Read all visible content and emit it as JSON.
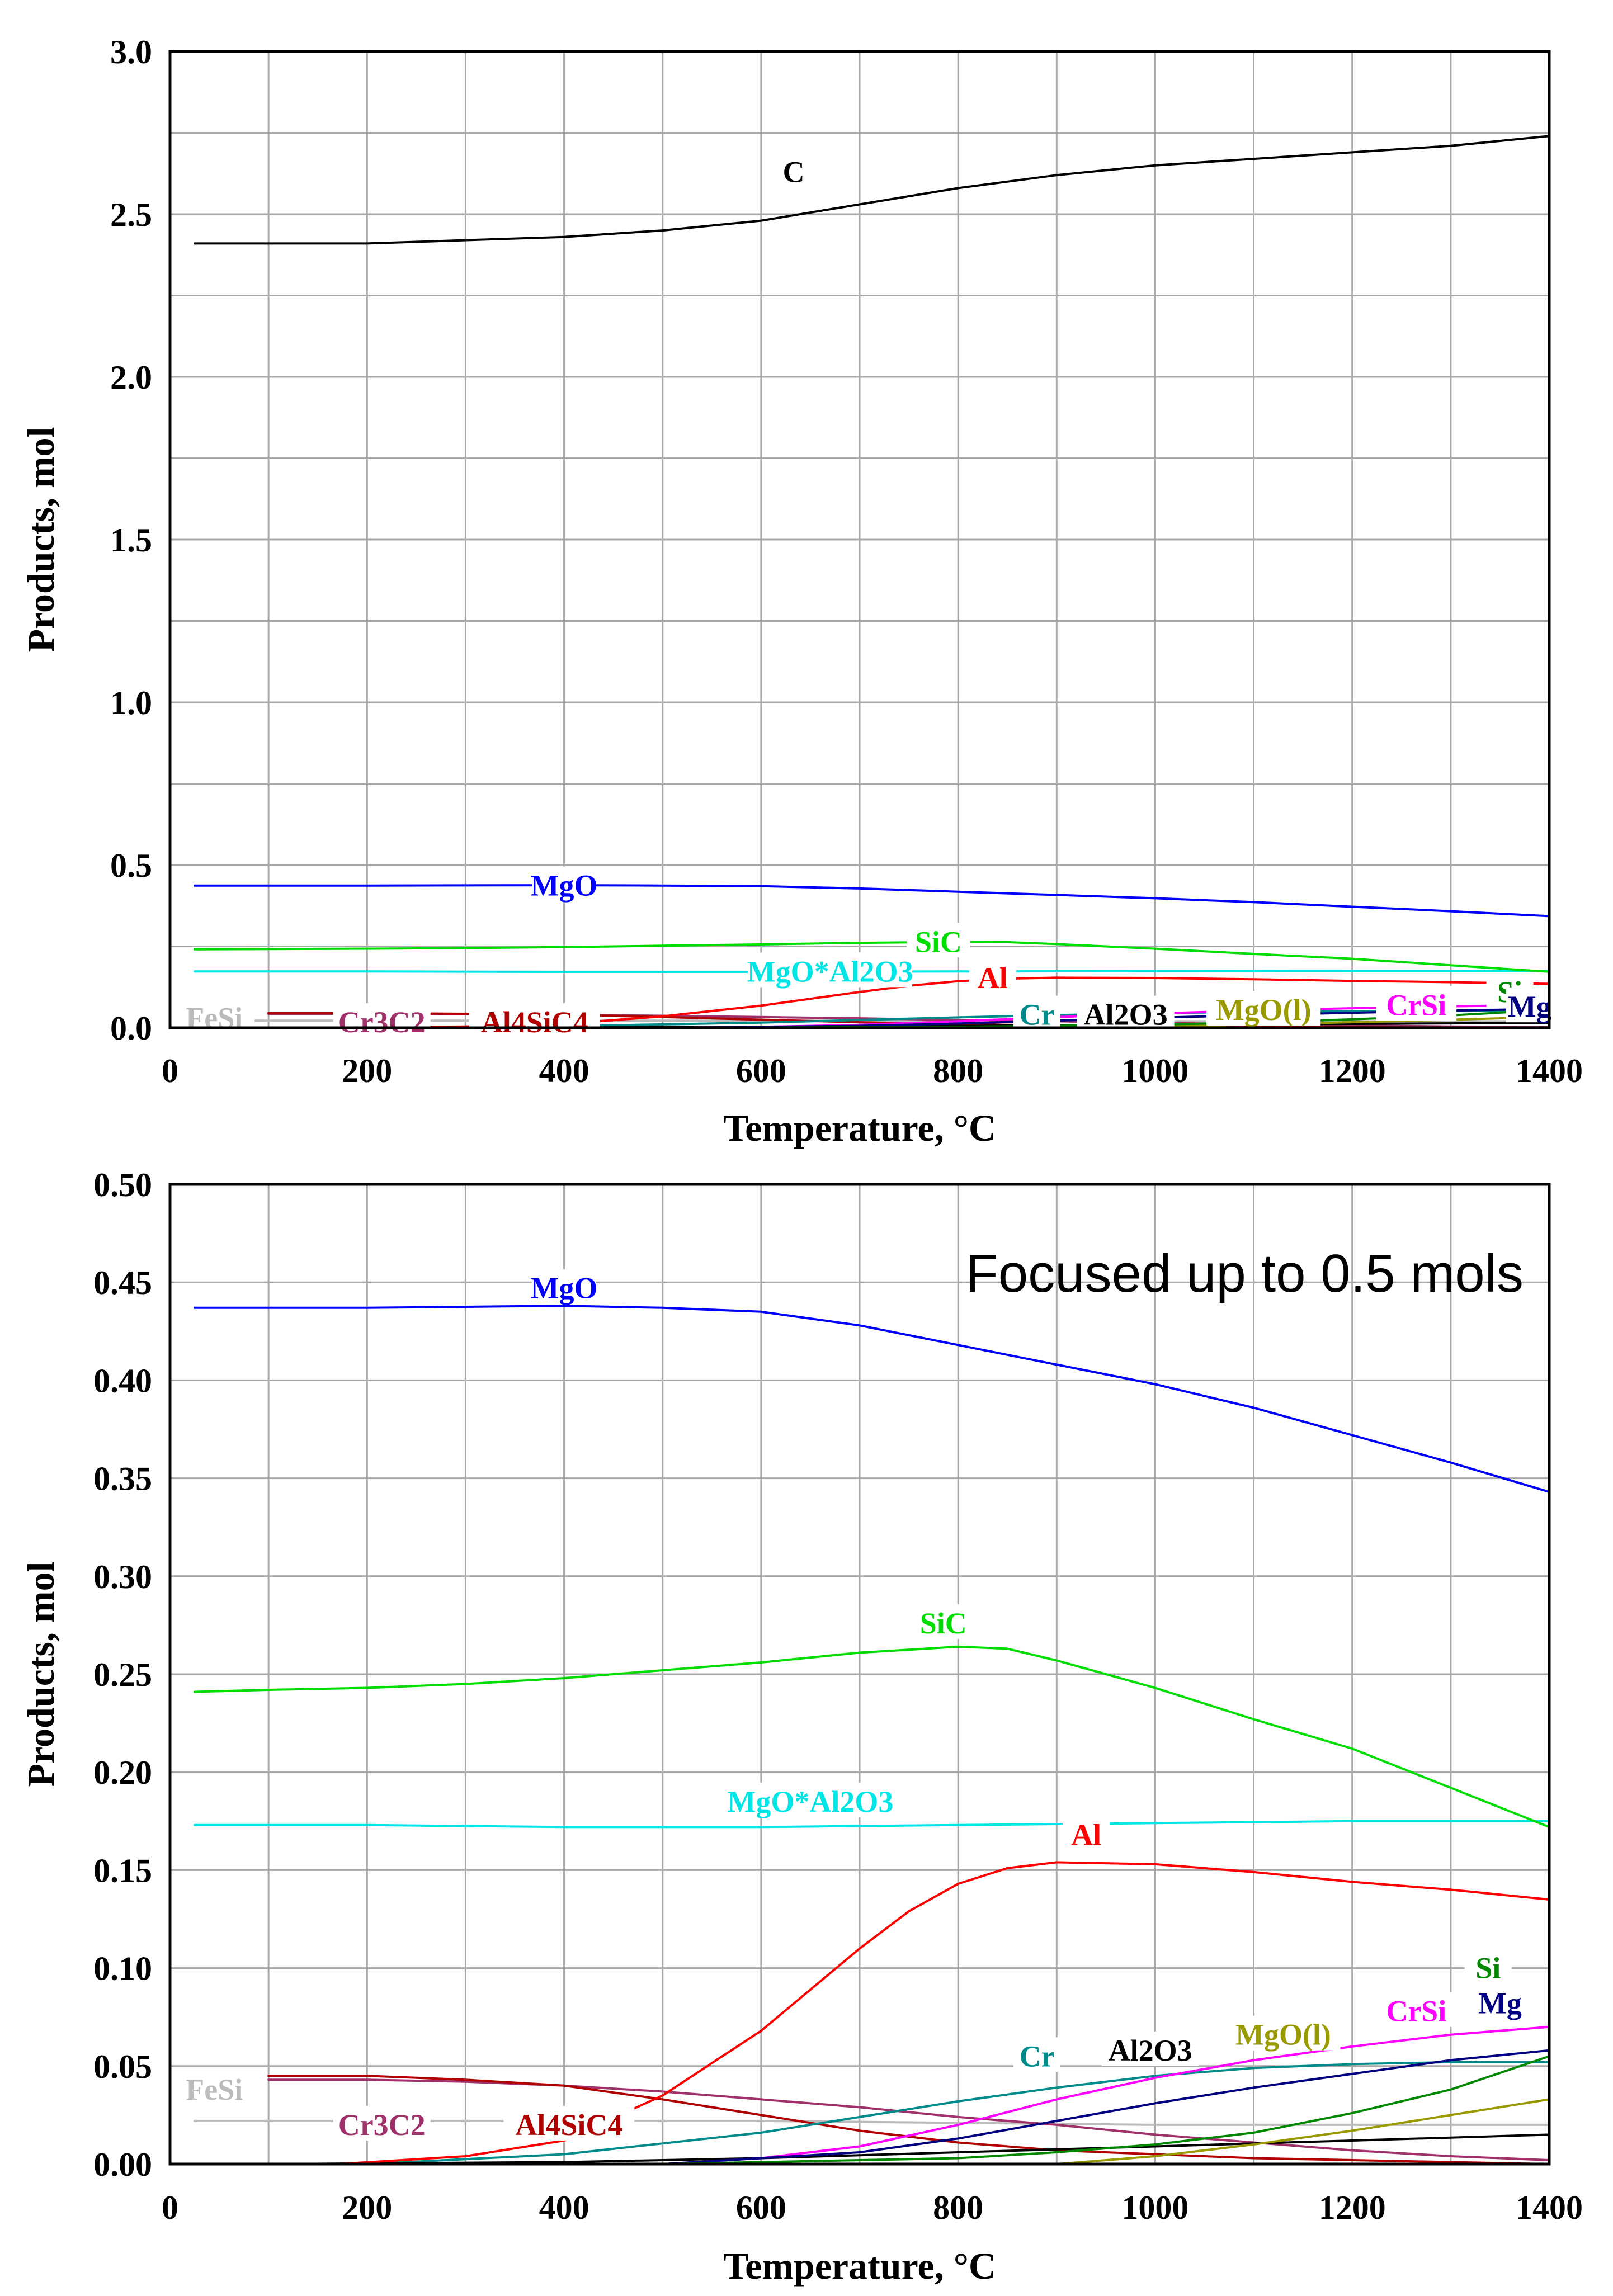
{
  "chart_data": [
    {
      "type": "line",
      "title": "",
      "xlabel": "Temperature, °C",
      "ylabel": "Products, mol",
      "xlim": [
        0,
        1400
      ],
      "ylim": [
        0,
        3.0
      ],
      "grid": true,
      "x_tick_step": 100,
      "x_tick_labels": [
        "0",
        "200",
        "400",
        "600",
        "800",
        "1000",
        "1200",
        "1400"
      ],
      "x_tick_values": [
        0,
        200,
        400,
        600,
        800,
        1000,
        1200,
        1400
      ],
      "y_tick_labels": [
        "0.0",
        "0.5",
        "1.0",
        "1.5",
        "2.0",
        "2.5",
        "3.0"
      ],
      "y_tick_values": [
        0,
        0.5,
        1.0,
        1.5,
        2.0,
        2.5,
        3.0
      ],
      "y_grid_step": 0.25,
      "series": [
        {
          "name": "C",
          "color": "#000000",
          "x": [
            25,
            200,
            400,
            500,
            600,
            700,
            800,
            900,
            1000,
            1100,
            1200,
            1300,
            1400
          ],
          "values": [
            2.41,
            2.41,
            2.43,
            2.45,
            2.48,
            2.53,
            2.58,
            2.62,
            2.65,
            2.67,
            2.69,
            2.71,
            2.74
          ],
          "label": "C",
          "label_at": [
            633,
            2.63
          ]
        },
        {
          "name": "MgO",
          "color": "#0000ff",
          "x": [
            25,
            200,
            400,
            500,
            600,
            700,
            800,
            900,
            1000,
            1100,
            1200,
            1300,
            1400
          ],
          "values": [
            0.437,
            0.437,
            0.438,
            0.437,
            0.435,
            0.428,
            0.418,
            0.408,
            0.398,
            0.386,
            0.372,
            0.358,
            0.343
          ],
          "label": "MgO",
          "label_at": [
            400,
            0.437
          ]
        },
        {
          "name": "SiC",
          "color": "#00dd00",
          "x": [
            25,
            100,
            200,
            300,
            400,
            500,
            600,
            700,
            800,
            850,
            900,
            1000,
            1100,
            1200,
            1300,
            1400
          ],
          "values": [
            0.241,
            0.242,
            0.243,
            0.245,
            0.248,
            0.252,
            0.256,
            0.261,
            0.264,
            0.263,
            0.257,
            0.243,
            0.227,
            0.212,
            0.192,
            0.172
          ],
          "label": "SiC",
          "label_at": [
            780,
            0.264
          ]
        },
        {
          "name": "MgO*Al2O3",
          "color": "#00e5e5",
          "x": [
            25,
            200,
            400,
            600,
            800,
            1000,
            1200,
            1400
          ],
          "values": [
            0.173,
            0.173,
            0.172,
            0.172,
            0.173,
            0.174,
            0.175,
            0.175
          ],
          "label": "MgO*Al2O3",
          "label_at": [
            670,
            0.173
          ]
        },
        {
          "name": "Al",
          "color": "#ff0000",
          "x": [
            170,
            300,
            400,
            500,
            600,
            700,
            750,
            800,
            850,
            900,
            1000,
            1100,
            1200,
            1300,
            1400
          ],
          "values": [
            0.0,
            0.004,
            0.012,
            0.035,
            0.068,
            0.11,
            0.129,
            0.143,
            0.151,
            0.154,
            0.153,
            0.149,
            0.144,
            0.14,
            0.135
          ],
          "label": "Al",
          "label_at": [
            835,
            0.153
          ]
        },
        {
          "name": "Si",
          "color": "#008800",
          "x": [
            500,
            800,
            900,
            1000,
            1100,
            1200,
            1300,
            1400
          ],
          "values": [
            0.0,
            0.003,
            0.006,
            0.01,
            0.016,
            0.026,
            0.038,
            0.055
          ],
          "label": "Si",
          "label_at": [
            1360,
            0.11
          ]
        },
        {
          "name": "Mg",
          "color": "#000080",
          "x": [
            500,
            700,
            800,
            900,
            1000,
            1100,
            1200,
            1300,
            1400
          ],
          "values": [
            0.0,
            0.006,
            0.013,
            0.022,
            0.031,
            0.039,
            0.046,
            0.053,
            0.058
          ],
          "label": "Mg",
          "label_at": [
            1380,
            0.065
          ]
        },
        {
          "name": "CrSi",
          "color": "#ff00ff",
          "x": [
            500,
            600,
            700,
            800,
            900,
            1000,
            1100,
            1200,
            1300,
            1400
          ],
          "values": [
            0.0,
            0.003,
            0.009,
            0.02,
            0.033,
            0.044,
            0.053,
            0.06,
            0.066,
            0.07
          ],
          "label": "CrSi",
          "label_at": [
            1265,
            0.07
          ]
        },
        {
          "name": "MgO(l)",
          "color": "#999900",
          "x": [
            900,
            1000,
            1100,
            1200,
            1300,
            1400
          ],
          "values": [
            0.0,
            0.004,
            0.01,
            0.017,
            0.025,
            0.033
          ],
          "label": "MgO(l)",
          "label_at": [
            1110,
            0.055
          ]
        },
        {
          "name": "Al2O3",
          "color": "#000000",
          "x": [
            100,
            400,
            600,
            800,
            1000,
            1200,
            1400
          ],
          "values": [
            0.0,
            0.001,
            0.003,
            0.006,
            0.009,
            0.012,
            0.015
          ],
          "label": "Al2O3",
          "label_at": [
            970,
            0.04
          ]
        },
        {
          "name": "Cr",
          "color": "#008b8b",
          "x": [
            200,
            400,
            600,
            700,
            800,
            900,
            1000,
            1100,
            1200,
            1300,
            1400
          ],
          "values": [
            0.0,
            0.005,
            0.016,
            0.024,
            0.032,
            0.039,
            0.045,
            0.049,
            0.051,
            0.052,
            0.052
          ],
          "label": "Cr",
          "label_at": [
            880,
            0.04
          ]
        },
        {
          "name": "Al4SiC4",
          "color": "#b00000",
          "x": [
            100,
            200,
            300,
            400,
            500,
            600,
            700,
            800,
            900,
            1000,
            1100,
            1200,
            1300,
            1400
          ],
          "values": [
            0.045,
            0.045,
            0.043,
            0.04,
            0.033,
            0.025,
            0.017,
            0.011,
            0.007,
            0.005,
            0.003,
            0.002,
            0.001,
            0.0
          ],
          "label": "Al4SiC4",
          "label_at": [
            370,
            0.017
          ]
        },
        {
          "name": "Cr3C2",
          "color": "#a0306a",
          "x": [
            100,
            200,
            300,
            400,
            500,
            600,
            700,
            800,
            900,
            1000,
            1100,
            1200,
            1300,
            1400
          ],
          "values": [
            0.043,
            0.043,
            0.042,
            0.04,
            0.037,
            0.033,
            0.029,
            0.024,
            0.02,
            0.015,
            0.011,
            0.007,
            0.004,
            0.002
          ],
          "label": "Cr3C2",
          "label_at": [
            215,
            0.017
          ]
        },
        {
          "name": "FeSi",
          "color": "#bbbbbb",
          "x": [
            25,
            100,
            200,
            400,
            600,
            800,
            1000,
            1200,
            1400
          ],
          "values": [
            0.022,
            0.022,
            0.022,
            0.022,
            0.022,
            0.021,
            0.02,
            0.02,
            0.02
          ],
          "label": "FeSi",
          "label_at": [
            45,
            0.03
          ]
        }
      ]
    },
    {
      "type": "line",
      "title": "",
      "annotation": "Focused up to 0.5 mols",
      "xlabel": "Temperature, °C",
      "ylabel": "Products, mol",
      "xlim": [
        0,
        1400
      ],
      "ylim": [
        0,
        0.5
      ],
      "grid": true,
      "x_tick_step": 100,
      "x_tick_labels": [
        "0",
        "200",
        "400",
        "600",
        "800",
        "1000",
        "1200",
        "1400"
      ],
      "x_tick_values": [
        0,
        200,
        400,
        600,
        800,
        1000,
        1200,
        1400
      ],
      "y_tick_labels": [
        "0.00",
        "0.05",
        "0.10",
        "0.15",
        "0.20",
        "0.25",
        "0.30",
        "0.35",
        "0.40",
        "0.45",
        "0.50"
      ],
      "y_tick_values": [
        0,
        0.05,
        0.1,
        0.15,
        0.2,
        0.25,
        0.3,
        0.35,
        0.4,
        0.45,
        0.5
      ],
      "y_grid_step": 0.05,
      "series": [
        {
          "name": "MgO",
          "color": "#0000ff",
          "x": [
            25,
            200,
            400,
            500,
            600,
            700,
            800,
            900,
            1000,
            1100,
            1200,
            1300,
            1400
          ],
          "values": [
            0.437,
            0.437,
            0.438,
            0.437,
            0.435,
            0.428,
            0.418,
            0.408,
            0.398,
            0.386,
            0.372,
            0.358,
            0.343
          ],
          "label": "MgO",
          "label_at": [
            400,
            0.447
          ]
        },
        {
          "name": "SiC",
          "color": "#00dd00",
          "x": [
            25,
            100,
            200,
            300,
            400,
            500,
            600,
            700,
            800,
            850,
            900,
            1000,
            1100,
            1200,
            1300,
            1400
          ],
          "values": [
            0.241,
            0.242,
            0.243,
            0.245,
            0.248,
            0.252,
            0.256,
            0.261,
            0.264,
            0.263,
            0.257,
            0.243,
            0.227,
            0.212,
            0.192,
            0.172
          ],
          "label": "SiC",
          "label_at": [
            785,
            0.276
          ]
        },
        {
          "name": "MgO*Al2O3",
          "color": "#00e5e5",
          "x": [
            25,
            200,
            400,
            600,
            800,
            1000,
            1200,
            1400
          ],
          "values": [
            0.173,
            0.173,
            0.172,
            0.172,
            0.173,
            0.174,
            0.175,
            0.175
          ],
          "label": "MgO*Al2O3",
          "label_at": [
            650,
            0.185
          ]
        },
        {
          "name": "Al",
          "color": "#ff0000",
          "x": [
            170,
            300,
            400,
            500,
            600,
            700,
            750,
            800,
            850,
            900,
            1000,
            1100,
            1200,
            1300,
            1400
          ],
          "values": [
            0.0,
            0.004,
            0.012,
            0.035,
            0.068,
            0.11,
            0.129,
            0.143,
            0.151,
            0.154,
            0.153,
            0.149,
            0.144,
            0.14,
            0.135
          ],
          "label": "Al",
          "label_at": [
            930,
            0.168
          ]
        },
        {
          "name": "Si",
          "color": "#008800",
          "x": [
            500,
            800,
            900,
            1000,
            1100,
            1200,
            1300,
            1400
          ],
          "values": [
            0.0,
            0.003,
            0.006,
            0.01,
            0.016,
            0.026,
            0.038,
            0.055
          ],
          "label": "Si",
          "label_at": [
            1338,
            0.1
          ]
        },
        {
          "name": "Mg",
          "color": "#000080",
          "x": [
            500,
            700,
            800,
            900,
            1000,
            1100,
            1200,
            1300,
            1400
          ],
          "values": [
            0.0,
            0.006,
            0.013,
            0.022,
            0.031,
            0.039,
            0.046,
            0.053,
            0.058
          ],
          "label": "Mg",
          "label_at": [
            1350,
            0.082
          ]
        },
        {
          "name": "CrSi",
          "color": "#ff00ff",
          "x": [
            500,
            600,
            700,
            800,
            900,
            1000,
            1100,
            1200,
            1300,
            1400
          ],
          "values": [
            0.0,
            0.003,
            0.009,
            0.02,
            0.033,
            0.044,
            0.053,
            0.06,
            0.066,
            0.07
          ],
          "label": "CrSi",
          "label_at": [
            1265,
            0.078
          ]
        },
        {
          "name": "MgO(l)",
          "color": "#999900",
          "x": [
            900,
            1000,
            1100,
            1200,
            1300,
            1400
          ],
          "values": [
            0.0,
            0.004,
            0.01,
            0.017,
            0.025,
            0.033
          ],
          "label": "MgO(l)",
          "label_at": [
            1130,
            0.066
          ]
        },
        {
          "name": "Al2O3",
          "color": "#000000",
          "x": [
            100,
            400,
            600,
            800,
            1000,
            1200,
            1400
          ],
          "values": [
            0.0,
            0.001,
            0.003,
            0.006,
            0.009,
            0.012,
            0.015
          ],
          "label": "Al2O3",
          "label_at": [
            995,
            0.058
          ]
        },
        {
          "name": "Cr",
          "color": "#008b8b",
          "x": [
            200,
            400,
            600,
            700,
            800,
            900,
            1000,
            1100,
            1200,
            1300,
            1400
          ],
          "values": [
            0.0,
            0.005,
            0.016,
            0.024,
            0.032,
            0.039,
            0.045,
            0.049,
            0.051,
            0.052,
            0.052
          ],
          "label": "Cr",
          "label_at": [
            880,
            0.055
          ]
        },
        {
          "name": "Al4SiC4",
          "color": "#b00000",
          "x": [
            100,
            200,
            300,
            400,
            500,
            600,
            700,
            800,
            900,
            1000,
            1100,
            1200,
            1300,
            1400
          ],
          "values": [
            0.045,
            0.045,
            0.043,
            0.04,
            0.033,
            0.025,
            0.017,
            0.011,
            0.007,
            0.005,
            0.003,
            0.002,
            0.001,
            0.0
          ],
          "label": "Al4SiC4",
          "label_at": [
            405,
            0.02
          ]
        },
        {
          "name": "Cr3C2",
          "color": "#a0306a",
          "x": [
            100,
            200,
            300,
            400,
            500,
            600,
            700,
            800,
            900,
            1000,
            1100,
            1200,
            1300,
            1400
          ],
          "values": [
            0.043,
            0.043,
            0.042,
            0.04,
            0.037,
            0.033,
            0.029,
            0.024,
            0.02,
            0.015,
            0.011,
            0.007,
            0.004,
            0.002
          ],
          "label": "Cr3C2",
          "label_at": [
            215,
            0.02
          ]
        },
        {
          "name": "FeSi",
          "color": "#bbbbbb",
          "x": [
            25,
            100,
            200,
            400,
            600,
            800,
            1000,
            1200,
            1400
          ],
          "values": [
            0.022,
            0.022,
            0.022,
            0.022,
            0.022,
            0.021,
            0.02,
            0.02,
            0.02
          ],
          "label": "FeSi",
          "label_at": [
            45,
            0.038
          ]
        }
      ]
    }
  ]
}
